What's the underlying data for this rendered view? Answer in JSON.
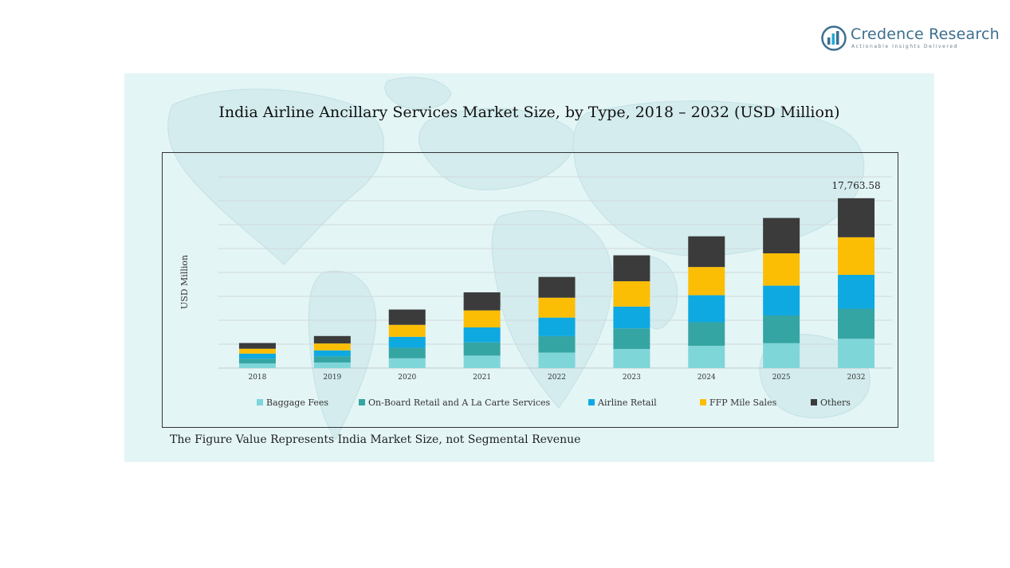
{
  "brand": {
    "name": "Credence Research",
    "tagline": "Actionable Insights Delivered"
  },
  "chart_data": {
    "type": "bar",
    "stacked": true,
    "title": "India Airline Ancillary Services Market Size, by Type, 2018 – 2032 (USD Million)",
    "ylabel": "USD Million",
    "xlabel": "",
    "categories": [
      "2018",
      "2019",
      "2020",
      "2021",
      "2022",
      "2023",
      "2024",
      "2025",
      "2032"
    ],
    "series": [
      {
        "name": "Baggage Fees",
        "color": "#7ed6d9",
        "values": [
          480,
          580,
          1020,
          1300,
          1620,
          2000,
          2330,
          2600,
          3060
        ]
      },
      {
        "name": "On-Board Retail and A La Carte Services",
        "color": "#35a5a3",
        "values": [
          500,
          640,
          1100,
          1390,
          1720,
          2150,
          2460,
          2900,
          3150
        ]
      },
      {
        "name": "Airline Retail",
        "color": "#0fa9e1",
        "values": [
          530,
          630,
          1150,
          1560,
          1940,
          2280,
          2830,
          3120,
          3540
        ]
      },
      {
        "name": "FFP Mile Sales",
        "color": "#fbbe05",
        "values": [
          510,
          720,
          1250,
          1780,
          2080,
          2650,
          2950,
          3380,
          3930
        ]
      },
      {
        "name": "Others",
        "color": "#3b3b3b",
        "values": [
          600,
          780,
          1600,
          1890,
          2170,
          2710,
          3210,
          3700,
          4083.58
        ]
      }
    ],
    "annotations": [
      {
        "category": "2032",
        "label": "17,763.58"
      }
    ],
    "ylim": [
      0,
      20000
    ],
    "grid": true,
    "legend": "bottom"
  },
  "footnote": "The Figure Value Represents India Market Size, not Segmental Revenue"
}
